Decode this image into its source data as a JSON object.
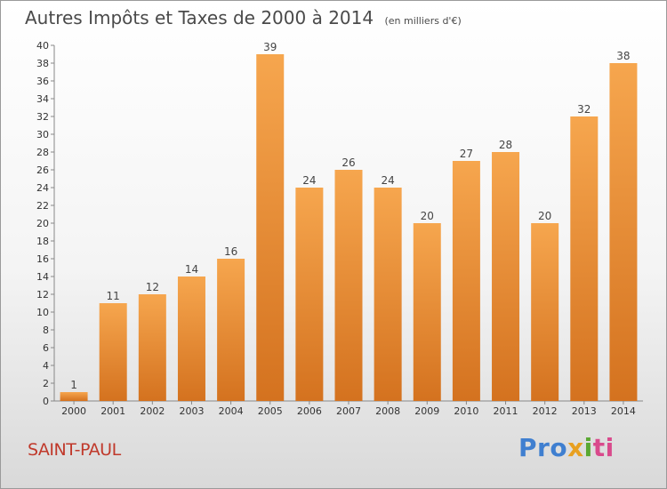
{
  "title": {
    "main": "Autres Impôts et Taxes de 2000 à 2014",
    "unit": "(en milliers d'€)"
  },
  "place": "SAINT-PAUL",
  "logo": {
    "text": "Proxiti",
    "parts": [
      "Pro",
      "x",
      "i",
      "ti"
    ]
  },
  "colors": {
    "bar_light": "#f6a64e",
    "bar_dark": "#d4721f",
    "axis_text": "#333333",
    "place_text": "#c0392b"
  },
  "chart_data": {
    "type": "bar",
    "title": "Autres Impôts et Taxes de 2000 à 2014",
    "subtitle": "(en milliers d'€)",
    "categories": [
      "2000",
      "2001",
      "2002",
      "2003",
      "2004",
      "2005",
      "2006",
      "2007",
      "2008",
      "2009",
      "2010",
      "2011",
      "2012",
      "2013",
      "2014"
    ],
    "values": [
      1,
      11,
      12,
      14,
      16,
      39,
      24,
      26,
      24,
      20,
      27,
      28,
      20,
      32,
      38
    ],
    "ylim": [
      0,
      40
    ],
    "yticks": [
      0,
      2,
      4,
      6,
      8,
      10,
      12,
      14,
      16,
      18,
      20,
      22,
      24,
      26,
      28,
      30,
      32,
      34,
      36,
      38,
      40
    ],
    "grid": false,
    "data_labels": true
  }
}
